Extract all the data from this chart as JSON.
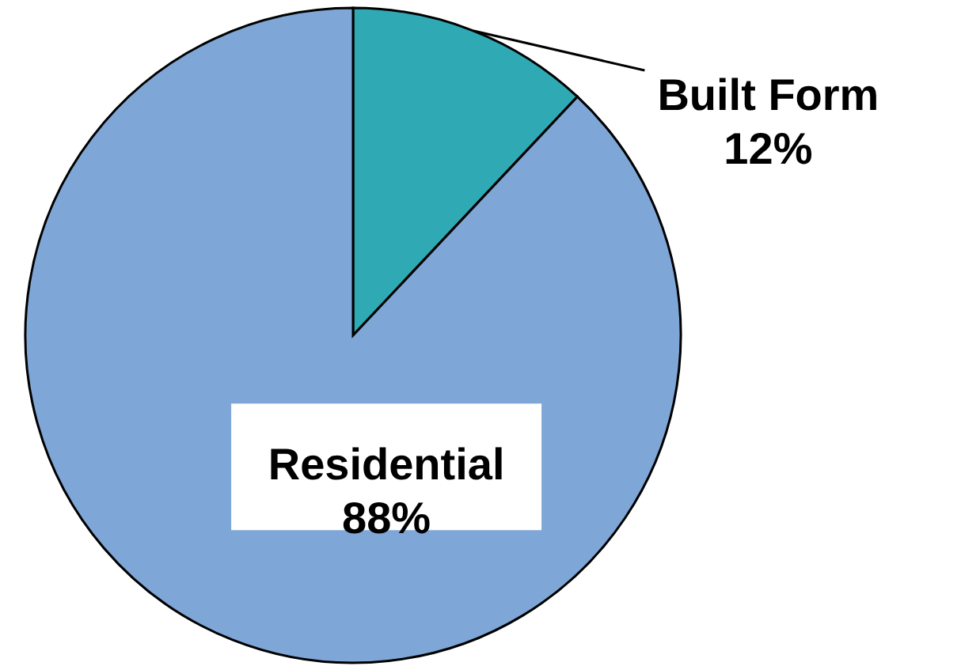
{
  "chart_data": {
    "type": "pie",
    "categories": [
      "Built Form",
      "Residential"
    ],
    "values": [
      12,
      88
    ],
    "colors": [
      "#2fa9b4",
      "#7ea6d6"
    ],
    "value_labels": [
      "12%",
      "88%"
    ]
  }
}
